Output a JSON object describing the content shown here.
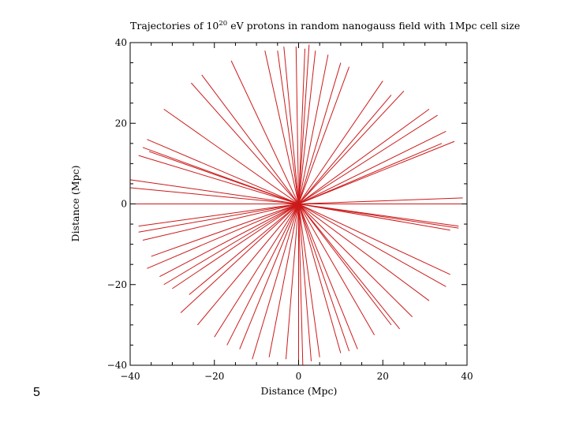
{
  "slide": {
    "page_number": "5"
  },
  "chart_data": {
    "type": "line",
    "title_pre": "Trajectories of 10",
    "title_exp": "20",
    "title_post": " eV protons in random nanogauss field with 1Mpc cell size",
    "xlabel": "Distance (Mpc)",
    "ylabel": "Distance (Mpc)",
    "xlim": [
      -40,
      40
    ],
    "ylim": [
      -40,
      40
    ],
    "xticks": [
      "−40",
      "−20",
      "0",
      "20",
      "40"
    ],
    "yticks": [
      "40",
      "20",
      "0",
      "−20",
      "−40"
    ],
    "x_tick_values": [
      -40,
      -20,
      0,
      20,
      40
    ],
    "y_tick_values": [
      40,
      20,
      0,
      -20,
      -40
    ],
    "grid": false,
    "line_color": "#cc1a1a",
    "axis_color": "#000000",
    "origin": [
      0,
      0
    ],
    "trajectory_endpoints": [
      [
        -0.6,
        39
      ],
      [
        1.5,
        38.5
      ],
      [
        -5,
        38
      ],
      [
        4,
        38
      ],
      [
        7,
        37
      ],
      [
        10,
        35
      ],
      [
        12,
        34
      ],
      [
        -23,
        32
      ],
      [
        -16,
        35.5
      ],
      [
        -8,
        38
      ],
      [
        20,
        30.5
      ],
      [
        22,
        27
      ],
      [
        25,
        28
      ],
      [
        31,
        23.5
      ],
      [
        33,
        22
      ],
      [
        35,
        18
      ],
      [
        37,
        15.5
      ],
      [
        -32,
        23.5
      ],
      [
        -36,
        16
      ],
      [
        -37,
        14
      ],
      [
        -38,
        12
      ],
      [
        -40,
        6
      ],
      [
        -40,
        4
      ],
      [
        -40,
        0
      ],
      [
        40,
        0
      ],
      [
        39,
        1.5
      ],
      [
        38,
        -5.5
      ],
      [
        36,
        -6.5
      ],
      [
        -38,
        -5.5
      ],
      [
        -38,
        -7
      ],
      [
        -37,
        -9
      ],
      [
        -35,
        -13
      ],
      [
        -36,
        -16
      ],
      [
        -33,
        -18
      ],
      [
        -30,
        -21
      ],
      [
        -26,
        -22.5
      ],
      [
        -32,
        -20
      ],
      [
        -28,
        -27
      ],
      [
        -24,
        -30
      ],
      [
        -20,
        -33
      ],
      [
        -17,
        -35
      ],
      [
        -14,
        -36
      ],
      [
        -11,
        -38.5
      ],
      [
        -7,
        -38
      ],
      [
        -3,
        -38.5
      ],
      [
        0,
        -39
      ],
      [
        1,
        -40
      ],
      [
        3,
        -39
      ],
      [
        5,
        -38
      ],
      [
        10,
        -37
      ],
      [
        12,
        -36.5
      ],
      [
        14,
        -36
      ],
      [
        18,
        -32.5
      ],
      [
        22,
        -30
      ],
      [
        24,
        -31
      ],
      [
        27,
        -28
      ],
      [
        31,
        -24
      ],
      [
        35,
        -20.5
      ],
      [
        36,
        -17.5
      ],
      [
        -3.5,
        39
      ],
      [
        2.5,
        39.5
      ],
      [
        -25.5,
        30
      ],
      [
        -35.5,
        13
      ],
      [
        34,
        15
      ],
      [
        38,
        -6
      ]
    ]
  }
}
